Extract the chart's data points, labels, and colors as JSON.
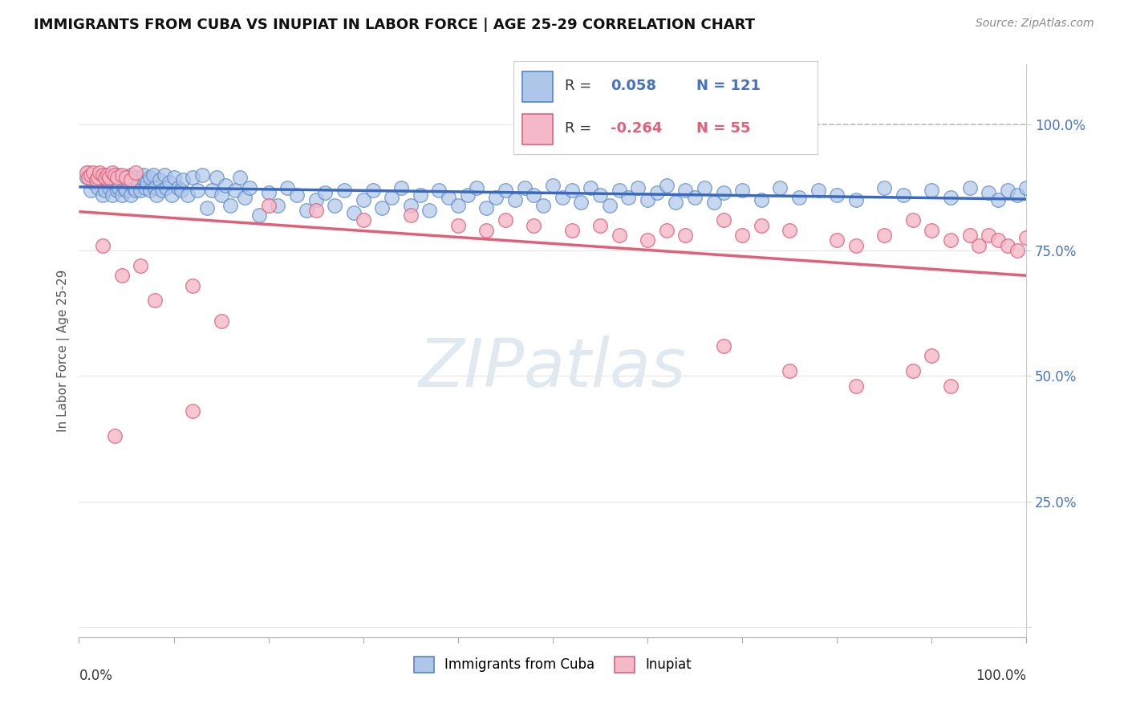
{
  "title": "IMMIGRANTS FROM CUBA VS INUPIAT IN LABOR FORCE | AGE 25-29 CORRELATION CHART",
  "source": "Source: ZipAtlas.com",
  "ylabel": "In Labor Force | Age 25-29",
  "xlim": [
    0.0,
    1.0
  ],
  "ylim": [
    -0.02,
    1.12
  ],
  "yticks": [
    0.0,
    0.25,
    0.5,
    0.75,
    1.0
  ],
  "ytick_labels": [
    "",
    "25.0%",
    "50.0%",
    "75.0%",
    "100.0%"
  ],
  "legend_r_cuba_val": "0.058",
  "legend_n_cuba": "N = 121",
  "legend_r_inupiat_val": "-0.264",
  "legend_n_inupiat": "N = 55",
  "color_cuba_fill": "#aec6e8",
  "color_cuba_edge": "#5585c8",
  "color_inupiat_fill": "#f5b8c8",
  "color_inupiat_edge": "#e0607a",
  "color_cuba_line": "#3a6abf",
  "color_inupiat_line": "#e0607a",
  "color_r_cuba": "#4472c4",
  "color_r_inupiat": "#e0607a",
  "background_color": "#ffffff",
  "dashed_line_color": "#b8b8b8",
  "marker_size": 160,
  "watermark_color": "#e0e8f0",
  "ytick_color": "#4472c4"
}
